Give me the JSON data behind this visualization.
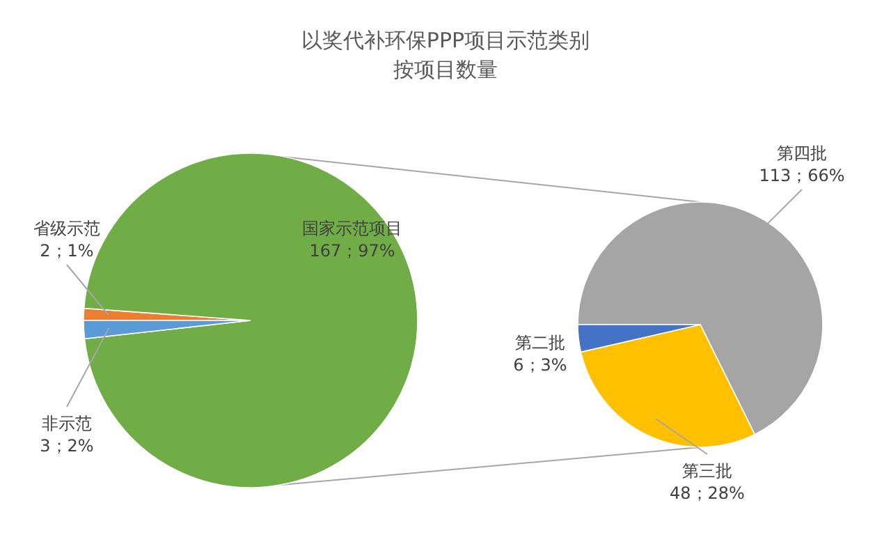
{
  "chart_data": [
    {
      "type": "pie",
      "title": "以奖代补环保PPP项目示范类别",
      "subtitle": "按项目数量",
      "categories": [
        "省级示范",
        "国家示范项目",
        "非示范"
      ],
      "values": [
        2,
        167,
        3
      ],
      "colors": [
        "#ed7d31",
        "#70ad47",
        "#5b9bd5"
      ],
      "value_labels": [
        "2；1%",
        "167；97%",
        "3；2%"
      ]
    },
    {
      "type": "pie",
      "categories": [
        "第四批",
        "第三批",
        "第二批"
      ],
      "values": [
        113,
        48,
        6
      ],
      "colors": [
        "#a5a5a5",
        "#ffc000",
        "#4472c4"
      ],
      "value_labels": [
        "113；66%",
        "48；28%",
        "6；3%"
      ]
    }
  ]
}
